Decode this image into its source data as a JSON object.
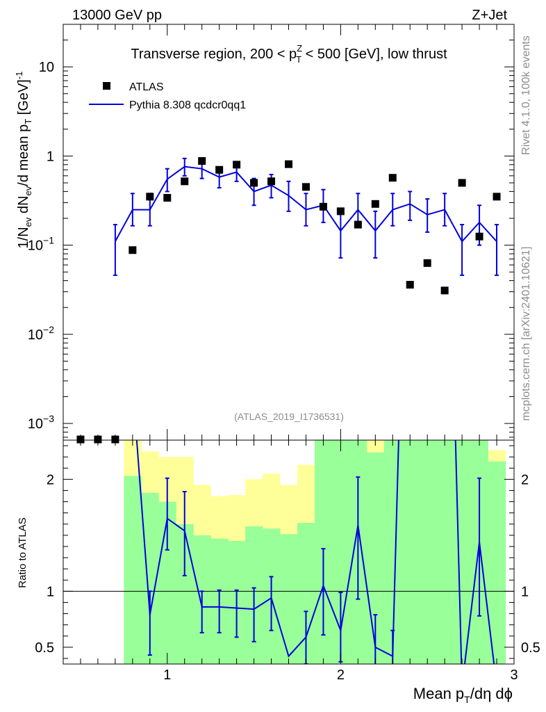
{
  "header": {
    "left": "13000 GeV pp",
    "right": "Z+Jet"
  },
  "side_labels": {
    "rivet": "Rivet 4.1.0,  100k events",
    "mcplots": "mcplots.cern.ch [arXiv:2401.10621]"
  },
  "chart_data": {
    "type": "scatter",
    "title": "Transverse region, 200 < p^Z_T < 500 [GeV], low thrust",
    "title_parts": {
      "before": "Transverse region, 200 < p",
      "sup": "Z",
      "sub": "T",
      "after": " < 500 [GeV], low thrust"
    },
    "analysis_tag": "(ATLAS_2019_I1736531)",
    "xlabel": "Mean p_T/dη dϕ",
    "xlabel_parts": {
      "a": "Mean p",
      "sub": "T",
      "b": "/dη dϕ"
    },
    "ylabel": "1/N_ev dN_ev/d mean p_T [GeV]^-1",
    "ylabel_parts": {
      "a": "1/N",
      "s1": "ev",
      "b": " dN",
      "s2": "ev",
      "c": "/d mean p",
      "s3": "T",
      "d": " [GeV]",
      "sup": "-1"
    },
    "ratio_ylabel": "Ratio to ATLAS",
    "xlim": [
      0.4,
      3.0
    ],
    "ylim": [
      0.00065,
      30
    ],
    "ratio_ylim": [
      0.35,
      2.35
    ],
    "x_ticks": [
      1,
      2,
      3
    ],
    "x_tick_labels": [
      "1",
      "2",
      "3"
    ],
    "y_ticks": [
      0.001,
      0.01,
      0.1,
      1,
      10
    ],
    "y_tick_labels": [
      {
        "base": "10",
        "exp": "−3"
      },
      {
        "base": "10",
        "exp": "−2"
      },
      {
        "base": "10",
        "exp": "−1"
      },
      {
        "base": "1",
        "exp": ""
      },
      {
        "base": "10",
        "exp": ""
      }
    ],
    "ratio_y_ticks": [
      0.5,
      1,
      2
    ],
    "ratio_y_tick_labels": [
      "0.5",
      "1",
      "2"
    ],
    "series": [
      {
        "name": "ATLAS",
        "kind": "data",
        "color": "#000000",
        "x": [
          0.5,
          0.6,
          0.7,
          0.8,
          0.9,
          1.0,
          1.1,
          1.2,
          1.3,
          1.4,
          1.5,
          1.6,
          1.7,
          1.8,
          1.9,
          2.0,
          2.1,
          2.2,
          2.3,
          2.4,
          2.5,
          2.6,
          2.7,
          2.8,
          2.9
        ],
        "y": [
          0.00065,
          0.00065,
          0.00065,
          0.088,
          0.35,
          0.34,
          0.52,
          0.88,
          0.7,
          0.8,
          0.5,
          0.52,
          0.81,
          0.45,
          0.27,
          0.24,
          0.17,
          0.29,
          0.57,
          0.036,
          0.063,
          0.031,
          0.5,
          0.125,
          0.35
        ]
      },
      {
        "name": "Pythia 8.308 qcdcr0qq1",
        "kind": "mc",
        "color": "#0000dd",
        "x": [
          0.7,
          0.8,
          0.9,
          1.0,
          1.1,
          1.2,
          1.3,
          1.4,
          1.5,
          1.6,
          1.7,
          1.8,
          1.9,
          2.0,
          2.1,
          2.2,
          2.3,
          2.4,
          2.5,
          2.6,
          2.7,
          2.8,
          2.9
        ],
        "y": [
          0.11,
          0.25,
          0.25,
          0.55,
          0.76,
          0.72,
          0.58,
          0.66,
          0.4,
          0.47,
          0.36,
          0.25,
          0.28,
          0.145,
          0.25,
          0.145,
          0.25,
          0.29,
          0.22,
          0.25,
          0.11,
          0.18,
          0.11
        ],
        "err_lo": [
          0.046,
          0.165,
          0.165,
          0.4,
          0.6,
          0.56,
          0.44,
          0.52,
          0.28,
          0.34,
          0.24,
          0.165,
          0.18,
          0.072,
          0.165,
          0.072,
          0.165,
          0.19,
          0.14,
          0.165,
          0.046,
          0.1,
          0.046
        ],
        "err_hi": [
          0.17,
          0.38,
          0.38,
          0.72,
          0.94,
          0.9,
          0.74,
          0.82,
          0.56,
          0.62,
          0.52,
          0.38,
          0.42,
          0.24,
          0.38,
          0.24,
          0.38,
          0.4,
          0.33,
          0.38,
          0.17,
          0.28,
          0.17
        ]
      }
    ],
    "ratio": {
      "x": [
        0.8,
        0.9,
        1.0,
        1.1,
        1.2,
        1.3,
        1.4,
        1.5,
        1.6,
        1.7,
        1.8,
        1.9,
        2.0,
        2.1,
        2.2,
        2.3,
        2.4,
        2.5,
        2.6,
        2.7,
        2.8,
        2.9
      ],
      "y": [
        2.84,
        0.79,
        1.65,
        1.54,
        0.86,
        0.86,
        0.85,
        0.84,
        0.94,
        0.42,
        0.59,
        1.05,
        0.65,
        1.59,
        0.5,
        0.42,
        6.0,
        6.0,
        6.0,
        0.15,
        1.44,
        0.15
      ],
      "err_lo": [
        null,
        0.43,
        1.37,
        1.14,
        0.63,
        0.63,
        0.59,
        0.55,
        0.65,
        null,
        0.35,
        0.61,
        0.37,
        0.93,
        0.29,
        0.25,
        null,
        null,
        null,
        null,
        0.78,
        null
      ],
      "err_hi": [
        null,
        1.0,
        2.01,
        1.89,
        1.0,
        1.01,
        1.01,
        1.03,
        1.13,
        null,
        0.82,
        1.38,
        0.99,
        2.02,
        0.79,
        0.65,
        null,
        null,
        null,
        null,
        2.01,
        null
      ],
      "band_edges": [
        0.75,
        0.85,
        0.95,
        1.05,
        1.15,
        1.25,
        1.35,
        1.45,
        1.55,
        1.65,
        1.75,
        1.85,
        1.95,
        2.05,
        2.15,
        2.25,
        2.35,
        2.45,
        2.55,
        2.65,
        2.75,
        2.85,
        2.95
      ],
      "green_lo": [
        0.35,
        0.35,
        0.35,
        0.35,
        0.35,
        0.35,
        0.35,
        0.35,
        0.35,
        0.35,
        0.35,
        0.35,
        0.35,
        0.35,
        0.35,
        0.35,
        0.35,
        0.35,
        0.35,
        0.35,
        0.35,
        0.35
      ],
      "green_hi": [
        2.03,
        1.88,
        1.8,
        1.6,
        1.5,
        1.47,
        1.45,
        1.58,
        1.56,
        1.51,
        1.61,
        2.35,
        2.35,
        2.35,
        2.24,
        2.35,
        2.35,
        2.35,
        2.35,
        2.35,
        2.35,
        2.16
      ],
      "yellow_lo": [
        0.35,
        0.35,
        0.35,
        0.35,
        0.63,
        0.62,
        0.57,
        0.49,
        0.48,
        0.35,
        0.35,
        0.35,
        0.35,
        0.35,
        0.35,
        0.35,
        0.35,
        0.35,
        0.35,
        0.46,
        0.35,
        0.35
      ],
      "yellow_hi": [
        2.35,
        2.25,
        2.2,
        2.2,
        1.95,
        1.85,
        1.86,
        2.0,
        2.05,
        1.95,
        2.13,
        2.35,
        2.35,
        2.35,
        2.35,
        2.35,
        2.35,
        2.35,
        2.35,
        2.35,
        2.35,
        2.26
      ]
    },
    "legend_position": "top-left"
  }
}
